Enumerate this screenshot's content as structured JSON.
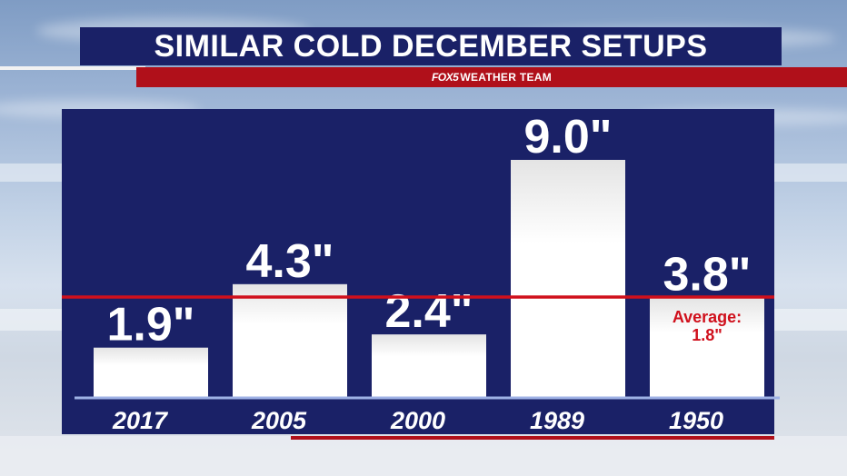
{
  "header": {
    "title": "SIMILAR COLD DECEMBER SETUPS",
    "logo": "FOX5",
    "subtitle": "WEATHER TEAM"
  },
  "colors": {
    "panel": "#1a2167",
    "accent_red": "#d0101c",
    "bar": "#ffffff"
  },
  "chart_data": {
    "type": "bar",
    "title": "SIMILAR COLD DECEMBER SETUPS",
    "xlabel": "",
    "ylabel": "",
    "categories": [
      "2017",
      "2005",
      "2000",
      "1989",
      "1950"
    ],
    "values": [
      1.9,
      4.3,
      2.4,
      9.0,
      3.8
    ],
    "value_labels": [
      "1.9\"",
      "4.3\"",
      "2.4\"",
      "9.0\"",
      "3.8\""
    ],
    "unit": "\"",
    "ylim": [
      0,
      9.0
    ],
    "grid": false,
    "reference_line": {
      "value": 1.8,
      "label_line1": "Average:",
      "label_line2": "1.8\"",
      "color": "#d0101c"
    }
  }
}
